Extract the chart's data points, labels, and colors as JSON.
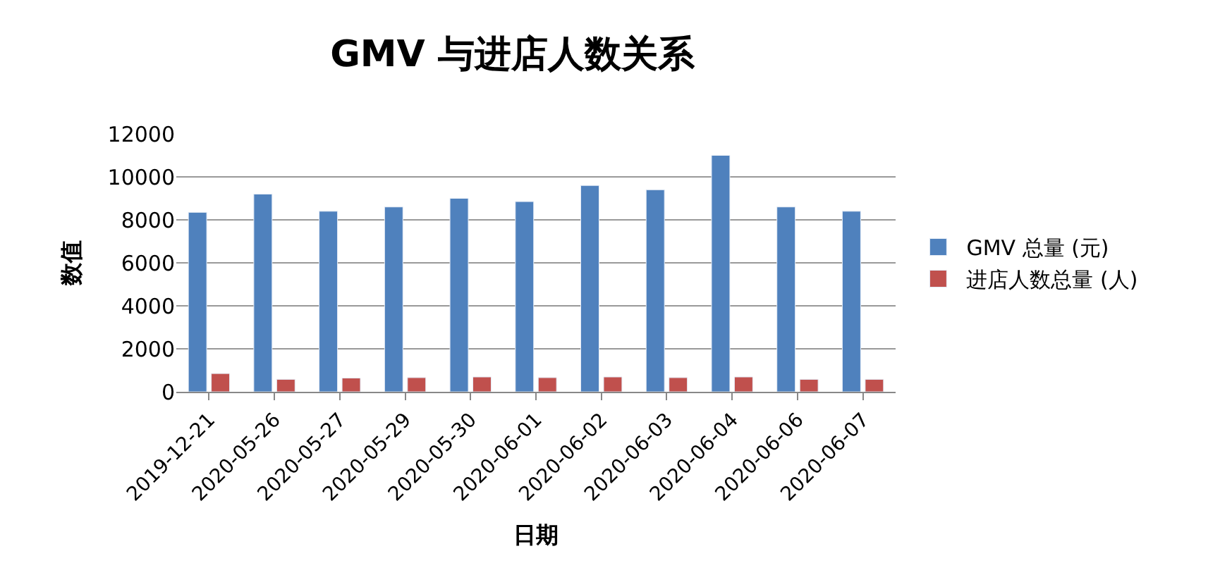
{
  "chart_data": {
    "type": "bar",
    "title": "GMV 与进店人数关系",
    "xlabel": "日期",
    "ylabel": "数值",
    "categories": [
      "2019-12-21",
      "2020-05-26",
      "2020-05-27",
      "2020-05-29",
      "2020-05-30",
      "2020-06-01",
      "2020-06-02",
      "2020-06-03",
      "2020-06-04",
      "2020-06-06",
      "2020-06-07"
    ],
    "series": [
      {
        "name": "GMV 总量 (元)",
        "color": "#4f81bd",
        "values": [
          8350,
          9200,
          8400,
          8600,
          9000,
          8850,
          9600,
          9400,
          11000,
          8600,
          8400
        ]
      },
      {
        "name": "进店人数总量 (人)",
        "color": "#c0504d",
        "values": [
          850,
          580,
          640,
          660,
          690,
          660,
          690,
          660,
          690,
          580,
          580
        ]
      }
    ],
    "ylim": [
      0,
      12000
    ],
    "yticks": [
      0,
      2000,
      4000,
      6000,
      8000,
      10000,
      12000
    ],
    "grid": "y",
    "legend": "right"
  }
}
